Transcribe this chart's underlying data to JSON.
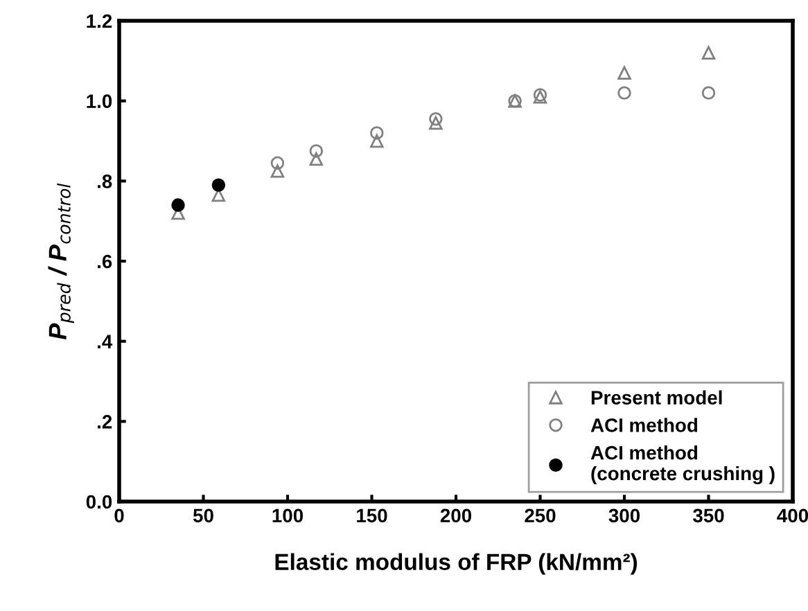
{
  "chart_data": {
    "type": "scatter",
    "xlabel": "Elastic modulus of FRP (kN/mm²)",
    "ylabel": "P$_{pred}$ / P$_{control}$",
    "xlim": [
      0,
      400
    ],
    "xticks": [
      0,
      50,
      100,
      150,
      200,
      250,
      300,
      350,
      400
    ],
    "ylim": [
      0,
      1.2
    ],
    "yticks": [
      {
        "value": 0,
        "label": "0.0"
      },
      {
        "value": 0.2,
        "label": ".2"
      },
      {
        "value": 0.4,
        "label": ".4"
      },
      {
        "value": 0.6,
        "label": ".6"
      },
      {
        "value": 0.8,
        "label": ".8"
      },
      {
        "value": 1.0,
        "label": "1.0"
      },
      {
        "value": 1.2,
        "label": "1.2"
      }
    ],
    "grid": false,
    "legend": "bottom right",
    "series": [
      {
        "name": "Present model",
        "color": "#808080",
        "marker": "triangle",
        "x": [
          35,
          59,
          94,
          117,
          153,
          188,
          235,
          250,
          300,
          350
        ],
        "values": [
          0.72,
          0.765,
          0.825,
          0.855,
          0.9,
          0.945,
          1.0,
          1.01,
          1.07,
          1.12
        ]
      },
      {
        "name": "ACI method",
        "color": "#808080",
        "marker": "circle",
        "x": [
          94,
          117,
          153,
          188,
          235,
          250,
          300,
          350
        ],
        "values": [
          0.845,
          0.875,
          0.92,
          0.955,
          1.0,
          1.015,
          1.02,
          1.02
        ]
      },
      {
        "name": "ACI method\n(concrete crushing )",
        "color": "#000000",
        "marker": "circle",
        "x": [
          35,
          59
        ],
        "values": [
          0.74,
          0.79
        ]
      }
    ]
  }
}
